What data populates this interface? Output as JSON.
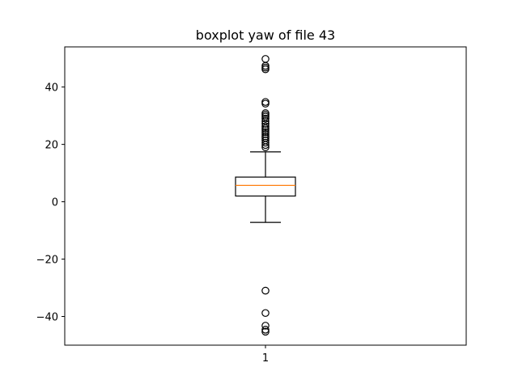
{
  "chart_data": {
    "type": "boxplot",
    "title": "boxplot yaw of file 43",
    "xlabel": "",
    "ylabel": "",
    "categories": [
      "1"
    ],
    "ylim": [
      -50,
      54
    ],
    "y_ticks": [
      -40,
      -20,
      0,
      20,
      40
    ],
    "y_tick_labels": [
      "−40",
      "−20",
      "0",
      "20",
      "40"
    ],
    "grid": false,
    "boxes": [
      {
        "label": "1",
        "whisker_low": -7.2,
        "q1": 2.0,
        "median": 5.7,
        "q3": 8.6,
        "whisker_high": 17.4,
        "outliers": [
          19.0,
          19.8,
          20.6,
          21.4,
          22.2,
          22.8,
          23.6,
          24.3,
          25.0,
          25.6,
          26.3,
          27.2,
          28.1,
          29.0,
          29.7,
          30.3,
          30.9,
          34.2,
          34.8,
          46.2,
          46.8,
          47.4,
          49.8,
          -31.0,
          -38.8,
          -43.2,
          -44.6,
          -45.3
        ]
      }
    ],
    "colors": {
      "box": "#000000",
      "median": "#ff7f0e",
      "outlier_edge": "#000000",
      "axes": "#000000"
    }
  }
}
